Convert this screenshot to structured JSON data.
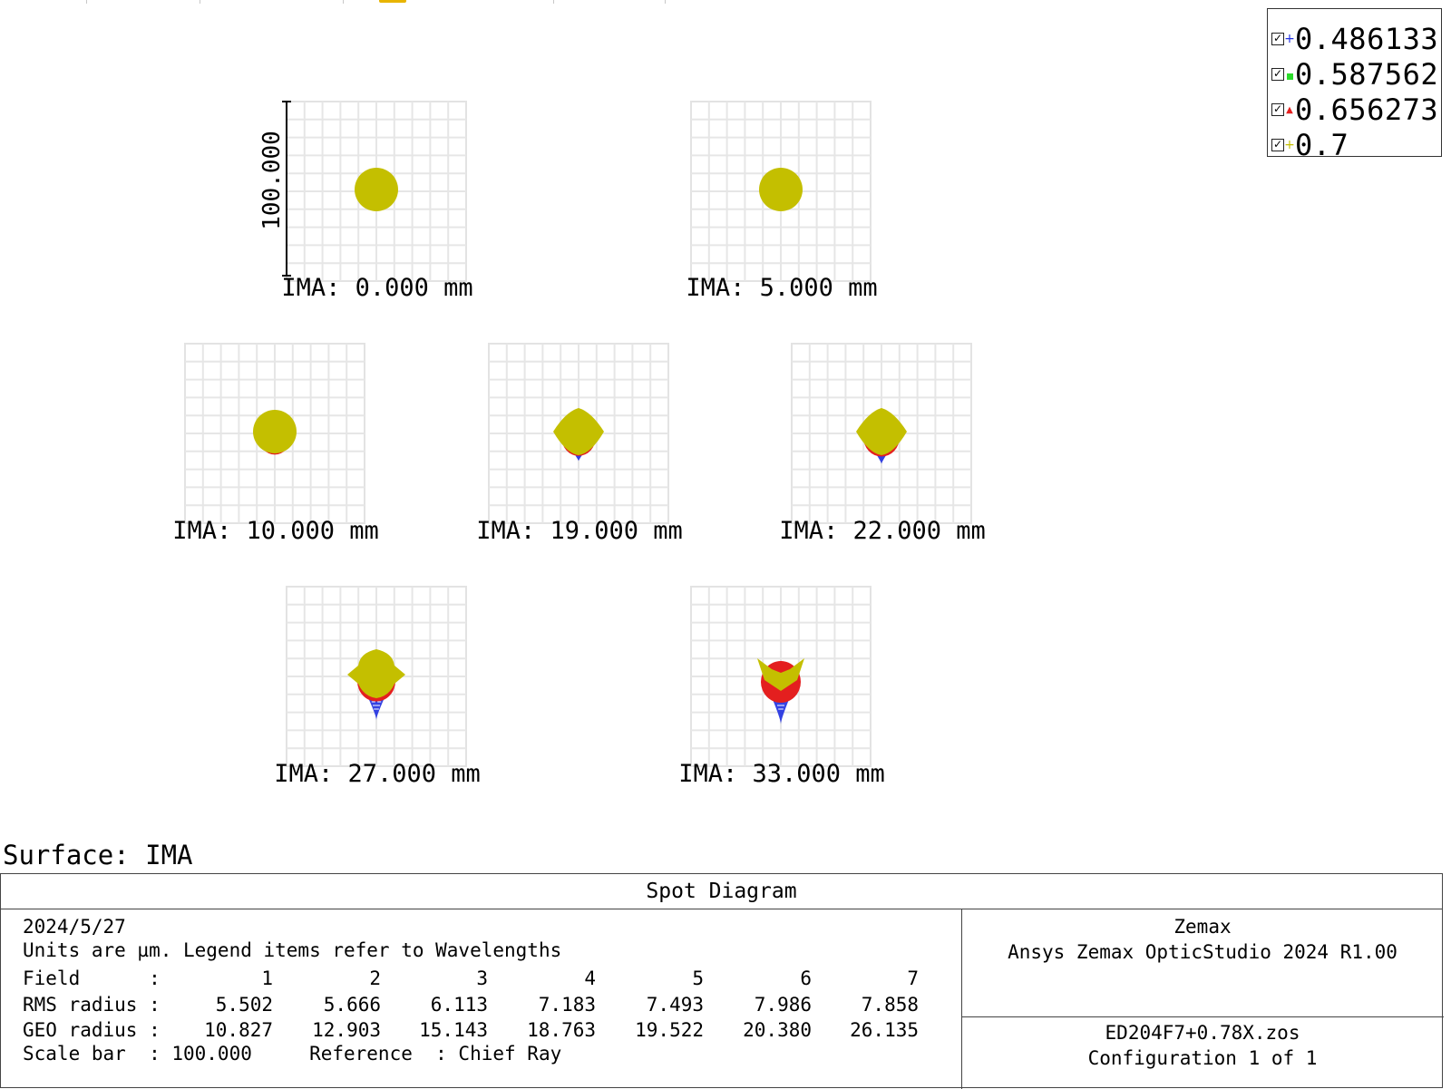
{
  "chart_data": {
    "type": "scatter",
    "title": "Spot Diagram",
    "legend": {
      "placement": "top-right",
      "items": [
        {
          "label": "0.486133",
          "color": "#1f2fe0",
          "marker": "plus",
          "checked": true
        },
        {
          "label": "0.587562",
          "color": "#2bdc2b",
          "marker": "square",
          "checked": true
        },
        {
          "label": "0.656273",
          "color": "#e41f1f",
          "marker": "triangle",
          "checked": true
        },
        {
          "label": "0.7",
          "color": "#c4bf00",
          "marker": "plus",
          "checked": true
        }
      ]
    },
    "scale_bar_label": "100.000",
    "grid": true,
    "fields": [
      {
        "label": "IMA: 0.000 mm",
        "shape": "round",
        "blue_tail": 0,
        "red_tail": 0,
        "green_tail": 0,
        "spread": 0
      },
      {
        "label": "IMA: 5.000 mm",
        "shape": "round",
        "blue_tail": 2,
        "red_tail": 0,
        "green_tail": 0,
        "spread": 0
      },
      {
        "label": "IMA: 10.000 mm",
        "shape": "round",
        "blue_tail": 5,
        "red_tail": 2,
        "green_tail": 0,
        "spread": 0
      },
      {
        "label": "IMA: 19.000 mm",
        "shape": "diamond",
        "blue_tail": 14,
        "red_tail": 4,
        "green_tail": 0,
        "spread": 1
      },
      {
        "label": "IMA: 22.000 mm",
        "shape": "diamond",
        "blue_tail": 16,
        "red_tail": 5,
        "green_tail": 0,
        "spread": 2
      },
      {
        "label": "IMA: 27.000 mm",
        "shape": "bell",
        "blue_tail": 25,
        "red_tail": 8,
        "green_tail": 0,
        "spread": 3
      },
      {
        "label": "IMA: 33.000 mm",
        "shape": "v",
        "blue_tail": 28,
        "red_tail": 10,
        "green_tail": 10,
        "spread": 4
      }
    ]
  },
  "surface_label": "Surface: IMA",
  "info": {
    "title": "Spot Diagram",
    "date": "2024/5/27",
    "units_line": "Units are µm. Legend items refer to Wavelengths",
    "field_label": "Field      :",
    "rms_label": "RMS radius :",
    "geo_label": "GEO radius :",
    "fields": [
      "1",
      "2",
      "3",
      "4",
      "5",
      "6",
      "7"
    ],
    "rms": [
      "5.502",
      "5.666",
      "6.113",
      "7.183",
      "7.493",
      "7.986",
      "7.858"
    ],
    "geo": [
      "10.827",
      "12.903",
      "15.143",
      "18.763",
      "19.522",
      "20.380",
      "26.135"
    ],
    "scale_bar_line": "Scale bar  : 100.000     Reference  : Chief Ray",
    "company": "Zemax",
    "product": "Ansys Zemax OpticStudio 2024 R1.00",
    "file": "ED204F7+0.78X.zos",
    "config": "Configuration 1 of 1"
  }
}
